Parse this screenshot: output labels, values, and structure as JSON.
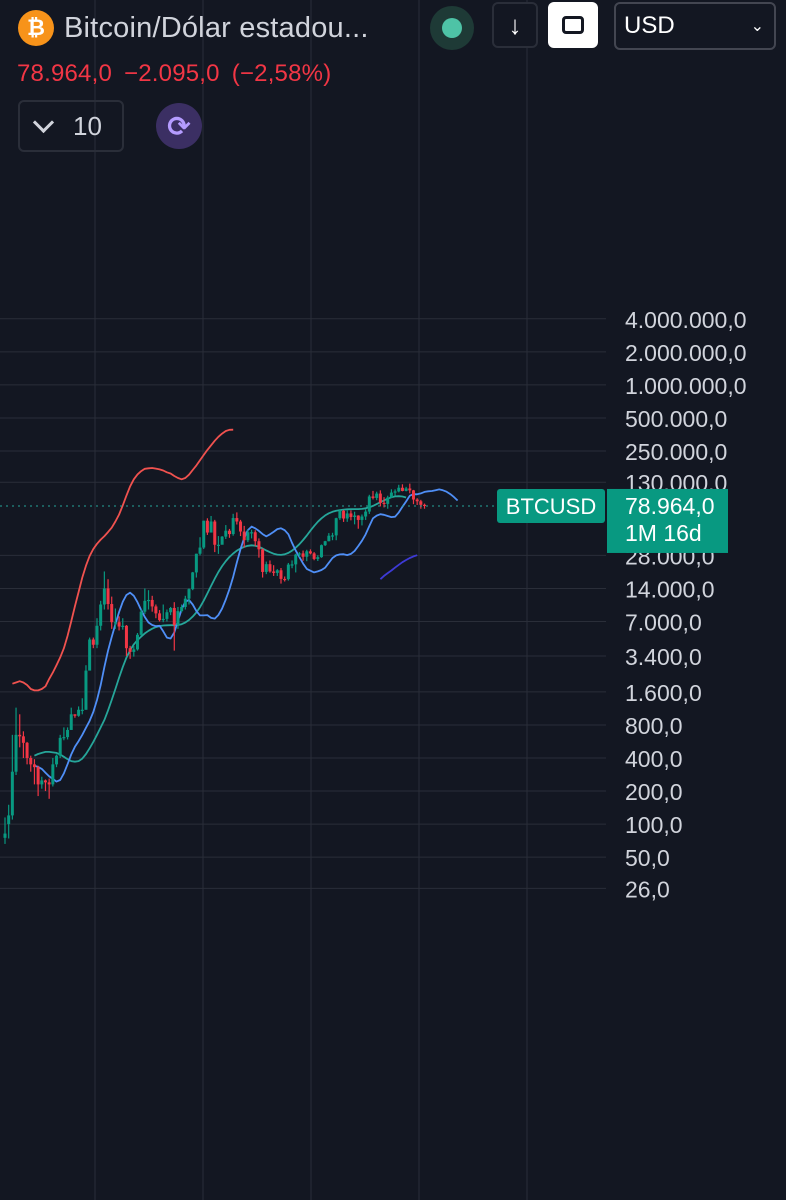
{
  "header": {
    "logo_glyph": "₿",
    "title": "Bitcoin/Dólar estadou...",
    "currency": "USD",
    "price": "78.964,0",
    "change": "−2.095,0",
    "change_pct": "(−2,58%)",
    "collapse_count": "10",
    "down_arrow": "↓",
    "sync_glyph": "⟳",
    "caret": "⌄"
  },
  "colors": {
    "background": "#131722",
    "up": "#089981",
    "down": "#f23645",
    "grid": "#2a2e39",
    "axis_text": "#d1d4dc",
    "upper_band": "#f0524f",
    "middle_line": "#26a69a",
    "fast_line": "#4f8ff7",
    "lower_band": "#3d3ad6"
  },
  "chart_data": {
    "type": "candlestick",
    "scale": "log",
    "ylim": [
      19,
      5000000
    ],
    "y_ticks": [
      {
        "value": 4000000,
        "label": "4.000.000,0"
      },
      {
        "value": 2000000,
        "label": "2.000.000,0"
      },
      {
        "value": 1000000,
        "label": "1.000.000,0"
      },
      {
        "value": 500000,
        "label": "500.000,0"
      },
      {
        "value": 250000,
        "label": "250.000,0"
      },
      {
        "value": 130000,
        "label": "130.000,0"
      },
      {
        "value": 28000,
        "label": "28.000,0"
      },
      {
        "value": 14000,
        "label": "14.000,0"
      },
      {
        "value": 7000,
        "label": "7.000,0"
      },
      {
        "value": 3400,
        "label": "3.400,0"
      },
      {
        "value": 1600,
        "label": "1.600,0"
      },
      {
        "value": 800,
        "label": "800,0"
      },
      {
        "value": 400,
        "label": "400,0"
      },
      {
        "value": 200,
        "label": "200,0"
      },
      {
        "value": 100,
        "label": "100,0"
      },
      {
        "value": 50,
        "label": "50,0"
      },
      {
        "value": 26,
        "label": "26,0"
      }
    ],
    "symbol_label": "BTCUSD",
    "last_price": {
      "value": 78964,
      "label": "78.964,0",
      "countdown": "1M 16d"
    },
    "candles": [
      [
        82,
        75,
        115,
        66
      ],
      [
        120,
        100,
        150,
        74
      ],
      [
        300,
        120,
        650,
        110
      ],
      [
        650,
        300,
        1150,
        280
      ],
      [
        630,
        650,
        1000,
        500
      ],
      [
        550,
        630,
        700,
        400
      ],
      [
        400,
        550,
        560,
        350
      ],
      [
        350,
        400,
        420,
        300
      ],
      [
        330,
        350,
        390,
        230
      ],
      [
        230,
        330,
        340,
        180
      ],
      [
        250,
        230,
        270,
        210
      ],
      [
        240,
        250,
        255,
        200
      ],
      [
        230,
        240,
        260,
        170
      ],
      [
        350,
        230,
        400,
        220
      ],
      [
        420,
        350,
        430,
        330
      ],
      [
        610,
        420,
        650,
        400
      ],
      [
        620,
        610,
        760,
        580
      ],
      [
        720,
        620,
        760,
        590
      ],
      [
        1000,
        720,
        1150,
        750
      ],
      [
        970,
        1000,
        1000,
        930
      ],
      [
        1100,
        970,
        1180,
        950
      ],
      [
        1100,
        1100,
        1400,
        1000
      ],
      [
        2500,
        1100,
        2800,
        1100
      ],
      [
        4800,
        2500,
        5000,
        2600
      ],
      [
        4300,
        4800,
        5000,
        4000
      ],
      [
        6400,
        4300,
        7500,
        4000
      ],
      [
        10000,
        6400,
        10800,
        5800
      ],
      [
        14000,
        10000,
        20000,
        9000
      ],
      [
        10100,
        14000,
        17000,
        9000
      ],
      [
        6900,
        10100,
        11800,
        6000
      ],
      [
        6900,
        6900,
        9200,
        6000
      ],
      [
        6300,
        6900,
        7800,
        5800
      ],
      [
        6400,
        6300,
        7500,
        5900
      ],
      [
        4000,
        6400,
        6500,
        3400
      ],
      [
        3700,
        4000,
        4200,
        3200
      ],
      [
        3900,
        3700,
        4200,
        3350
      ],
      [
        5300,
        3900,
        5500,
        3800
      ],
      [
        8600,
        5300,
        9000,
        5200
      ],
      [
        10800,
        8600,
        14000,
        8200
      ],
      [
        11000,
        10800,
        13500,
        9000
      ],
      [
        9600,
        11000,
        12000,
        8600
      ],
      [
        8300,
        9600,
        10000,
        7500
      ],
      [
        7200,
        8300,
        8900,
        7000
      ],
      [
        7400,
        7200,
        10000,
        6900
      ],
      [
        8500,
        7400,
        9000,
        7000
      ],
      [
        9300,
        8500,
        9500,
        8000
      ],
      [
        6500,
        9300,
        10500,
        3800
      ],
      [
        8700,
        6500,
        9500,
        6000
      ],
      [
        9500,
        8700,
        10000,
        8500
      ],
      [
        11300,
        9500,
        12000,
        9000
      ],
      [
        13800,
        11300,
        14000,
        10000
      ],
      [
        19600,
        13800,
        19800,
        13500
      ],
      [
        29000,
        19600,
        29000,
        17600
      ],
      [
        33000,
        29000,
        41000,
        28000
      ],
      [
        58000,
        33000,
        58000,
        32000
      ],
      [
        45200,
        58000,
        61000,
        43000
      ],
      [
        57000,
        45200,
        64000,
        47000
      ],
      [
        35000,
        57000,
        59000,
        30000
      ],
      [
        35000,
        35000,
        42000,
        28900
      ],
      [
        41500,
        35000,
        42000,
        37300
      ],
      [
        47000,
        41500,
        52900,
        39500
      ],
      [
        43800,
        47000,
        48800,
        40500
      ],
      [
        61300,
        43800,
        67000,
        42300
      ],
      [
        57000,
        61300,
        69000,
        53500
      ],
      [
        46200,
        57000,
        59000,
        42000
      ],
      [
        38500,
        46200,
        52000,
        33000
      ],
      [
        45500,
        38500,
        48000,
        37000
      ],
      [
        45500,
        45500,
        48000,
        40000
      ],
      [
        37700,
        45500,
        47500,
        34000
      ],
      [
        31800,
        37700,
        40000,
        26700
      ],
      [
        19800,
        31800,
        32400,
        17600
      ],
      [
        23300,
        19800,
        24600,
        18900
      ],
      [
        20000,
        23300,
        25200,
        19500
      ],
      [
        19400,
        20000,
        22800,
        18200
      ],
      [
        20500,
        19400,
        21000,
        18200
      ],
      [
        17100,
        20500,
        21500,
        15500
      ],
      [
        17000,
        17100,
        18000,
        16200
      ],
      [
        23100,
        17000,
        23900,
        16500
      ],
      [
        23200,
        23100,
        25200,
        21400
      ],
      [
        28500,
        23200,
        29000,
        19600
      ],
      [
        29200,
        28500,
        30000,
        27000
      ],
      [
        27200,
        29200,
        31000,
        25000
      ],
      [
        30500,
        27200,
        31500,
        24800
      ],
      [
        29200,
        30500,
        31800,
        28600
      ],
      [
        26000,
        29200,
        30000,
        25300
      ],
      [
        27000,
        26000,
        28100,
        24900
      ],
      [
        34700,
        27000,
        35200,
        26600
      ],
      [
        37700,
        34700,
        38000,
        34100
      ],
      [
        42300,
        37700,
        44700,
        37600
      ],
      [
        42600,
        42300,
        45000,
        38500
      ],
      [
        61100,
        42600,
        61700,
        38500
      ],
      [
        71300,
        61100,
        73800,
        59000
      ],
      [
        60700,
        71300,
        72700,
        56500
      ],
      [
        67500,
        60700,
        71900,
        56600
      ],
      [
        62700,
        67500,
        72000,
        58400
      ],
      [
        64600,
        62700,
        70000,
        53700
      ],
      [
        58900,
        64600,
        65000,
        49000
      ],
      [
        63300,
        58900,
        66000,
        52500
      ],
      [
        70200,
        63300,
        73600,
        58900
      ],
      [
        96400,
        70200,
        99800,
        66800
      ],
      [
        93400,
        96400,
        108300,
        90500
      ],
      [
        102400,
        93400,
        106500,
        89100
      ],
      [
        84300,
        102400,
        109600,
        78200
      ],
      [
        82500,
        84300,
        95000,
        76600
      ],
      [
        94200,
        82500,
        97900,
        74500
      ],
      [
        104600,
        94200,
        112000,
        93400
      ],
      [
        107100,
        104600,
        111800,
        98200
      ],
      [
        115700,
        107100,
        123100,
        105100
      ],
      [
        108200,
        115700,
        124400,
        107400
      ],
      [
        114000,
        108200,
        117900,
        107300
      ],
      [
        109500,
        114000,
        126200,
        103000
      ],
      [
        90400,
        109500,
        110600,
        82000
      ],
      [
        87100,
        90400,
        93000,
        80600
      ],
      [
        80900,
        87100,
        89800,
        74500
      ],
      [
        78964,
        80900,
        83000,
        74500
      ]
    ],
    "series": [
      {
        "name": "upper",
        "start": 2,
        "values": [
          1900,
          1950,
          2000,
          1950,
          1850,
          1700,
          1650,
          1650,
          1700,
          1800,
          2100,
          2400,
          2800,
          3300,
          4000,
          5200,
          7000,
          9600,
          13000,
          17600,
          22600,
          27600,
          32000,
          35700,
          39000,
          42000,
          45600,
          50100,
          57000,
          66000,
          80000,
          98000,
          119000,
          138000,
          153000,
          164000,
          172000,
          174000,
          175000,
          173000,
          170000,
          166000,
          160000,
          156000,
          148000,
          142000,
          138000,
          142000,
          152000,
          168000,
          185000,
          206000,
          230000,
          256000,
          282000,
          310000,
          337000,
          360000,
          380000,
          390000,
          391000
        ]
      },
      {
        "name": "middle",
        "start": 8,
        "values": [
          420,
          435,
          445,
          455,
          455,
          450,
          445,
          430,
          410,
          390,
          375,
          370,
          375,
          395,
          435,
          490,
          560,
          650,
          760,
          890,
          1080,
          1350,
          1700,
          2160,
          2700,
          3280,
          3830,
          4330,
          4740,
          5100,
          5450,
          5760,
          6020,
          6220,
          6360,
          6440,
          6470,
          6480,
          6480,
          6510,
          6620,
          6860,
          7230,
          7760,
          8470,
          9440,
          10830,
          12610,
          14780,
          17210,
          19770,
          22350,
          24870,
          27140,
          29130,
          30870,
          32330,
          33470,
          34260,
          34580,
          34330,
          33550,
          32340,
          31040,
          29920,
          29040,
          28450,
          28290,
          28630,
          29500,
          30930,
          32880,
          35430,
          38640,
          42500,
          47000,
          51800,
          56600,
          61000,
          64800,
          67700,
          69800,
          71300,
          72400,
          73200,
          73600,
          73800,
          73900,
          74000,
          74300,
          75200,
          76800,
          79000,
          82100,
          85500,
          88800,
          91900,
          94600,
          96400,
          97000,
          96200,
          94200
        ]
      },
      {
        "name": "fast",
        "start": 8,
        "values": [
          340,
          332,
          318,
          294,
          272,
          258,
          244,
          252,
          290,
          352,
          430,
          506,
          570,
          650,
          755,
          870,
          1050,
          1350,
          1850,
          2700,
          3790,
          5060,
          6600,
          8550,
          10600,
          12200,
          12800,
          12000,
          10500,
          8900,
          7700,
          6860,
          6500,
          6350,
          6400,
          5700,
          5000,
          4900,
          5560,
          7130,
          9000,
          10600,
          11000,
          10000,
          8700,
          7950,
          7960,
          8010,
          7550,
          7440,
          8020,
          9200,
          11100,
          13800,
          17900,
          24100,
          31900,
          40300,
          47600,
          51200,
          49400,
          46800,
          43800,
          41700,
          43600,
          45800,
          48600,
          49400,
          47500,
          43600,
          36500,
          31000,
          27000,
          23600,
          21100,
          20300,
          19600,
          20000,
          20600,
          21700,
          24000,
          26500,
          28000,
          28600,
          28700,
          28200,
          28900,
          30800,
          34100,
          38100,
          43500,
          51800,
          61000,
          64500,
          66500,
          65600,
          64000,
          62500,
          63000,
          69000,
          77600,
          86700,
          97900,
          101000,
          100900,
          102700,
          106000,
          107500,
          108000,
          109800,
          111800,
          109700,
          106500,
          101200,
          95000,
          88600
        ]
      },
      {
        "name": "lower",
        "start": 102,
        "values": [
          17000,
          18200,
          19300,
          20400,
          21700,
          23000,
          24300,
          25400,
          26500,
          27400,
          28100
        ]
      }
    ]
  }
}
